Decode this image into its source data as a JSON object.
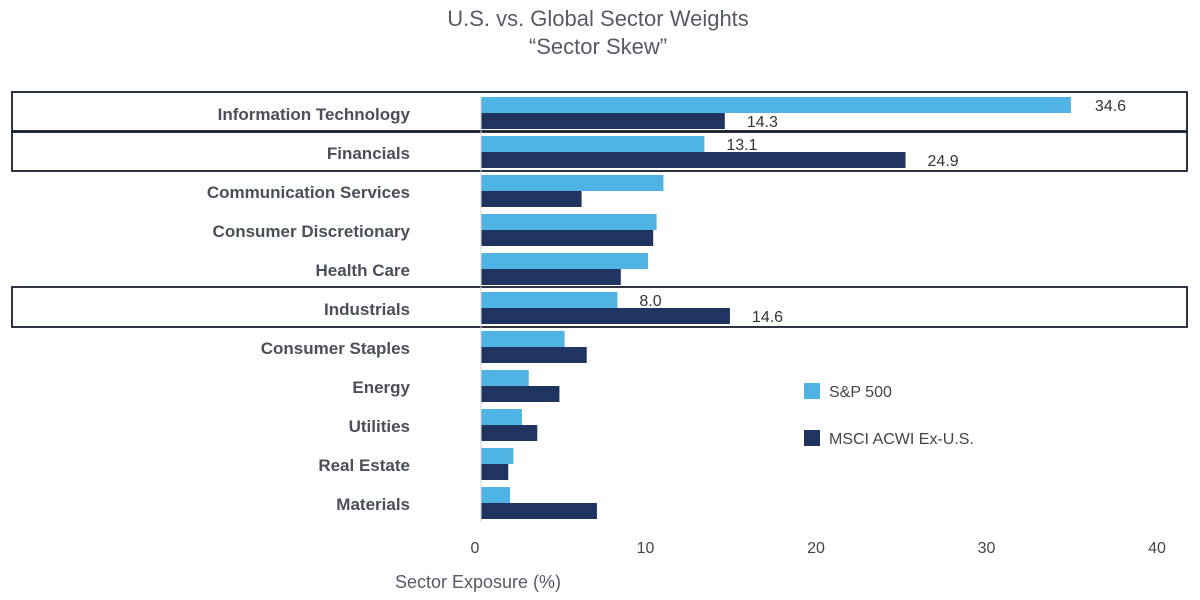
{
  "chart_data": {
    "type": "bar",
    "orientation": "horizontal",
    "title": "U.S. vs. Global Sector Weights",
    "subtitle": "“Sector Skew”",
    "xlabel": "Sector Exposure (%)",
    "ylabel": "",
    "xlim": [
      0,
      40
    ],
    "ticks": [
      0,
      10,
      20,
      30,
      40
    ],
    "grid": false,
    "legend_position": "right-center",
    "categories": [
      "Information Technology",
      "Financials",
      "Communication Services",
      "Consumer Discretionary",
      "Health Care",
      "Industrials",
      "Consumer Staples",
      "Energy",
      "Utilities",
      "Real Estate",
      "Materials"
    ],
    "highlighted": [
      "Information Technology",
      "Financials",
      "Industrials"
    ],
    "series": [
      {
        "name": "S&P 500",
        "color": "#4fb3e3",
        "values": [
          34.6,
          13.1,
          10.7,
          10.3,
          9.8,
          8.0,
          4.9,
          2.8,
          2.4,
          1.9,
          1.7
        ],
        "labels": [
          "34.6",
          "13.1",
          null,
          null,
          null,
          "8.0",
          null,
          null,
          null,
          null,
          null
        ]
      },
      {
        "name": "MSCI ACWI Ex-U.S.",
        "color": "#1f3461",
        "values": [
          14.3,
          24.9,
          5.9,
          10.1,
          8.2,
          14.6,
          6.2,
          4.6,
          3.3,
          1.6,
          6.8
        ],
        "labels": [
          "14.3",
          "24.9",
          null,
          null,
          null,
          "14.6",
          null,
          null,
          null,
          null,
          null
        ]
      }
    ]
  }
}
